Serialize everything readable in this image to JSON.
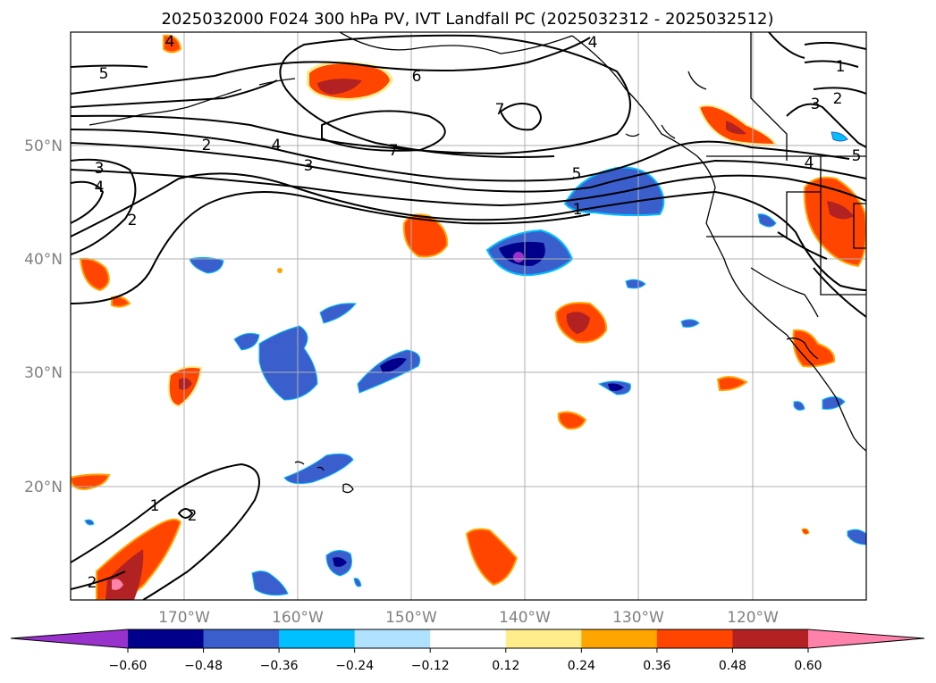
{
  "title": "2025032000 F024 300 hPa PV, IVT Landfall PC (2025032312 - 2025032512)",
  "map": {
    "projection": "PlateCarree",
    "lon_range": [
      -180,
      -110
    ],
    "lat_range": [
      10,
      60
    ],
    "lon_ticks": [
      "170°W",
      "160°W",
      "150°W",
      "140°W",
      "130°W",
      "120°W"
    ],
    "lat_ticks": [
      "50°N",
      "40°N",
      "30°N",
      "20°N"
    ],
    "grid": true
  },
  "colorbar": {
    "ticks": [
      "−0.60",
      "−0.48",
      "−0.36",
      "−0.24",
      "−0.12",
      "0.12",
      "0.24",
      "0.36",
      "0.48",
      "0.60"
    ],
    "colors": [
      "#9932cc",
      "#00008b",
      "#3a5fcd",
      "#00bfff",
      "#b0e2ff",
      "#ffffff",
      "#ffec8b",
      "#ffa500",
      "#ff4500",
      "#b22222",
      "#ff82ab"
    ]
  },
  "contour_labels": [
    "5",
    "6",
    "7",
    "7",
    "2",
    "4",
    "3",
    "3",
    "4",
    "2",
    "5",
    "1",
    "4",
    "1",
    "3",
    "2",
    "1",
    "2",
    "2",
    "4",
    "5",
    "4"
  ]
}
